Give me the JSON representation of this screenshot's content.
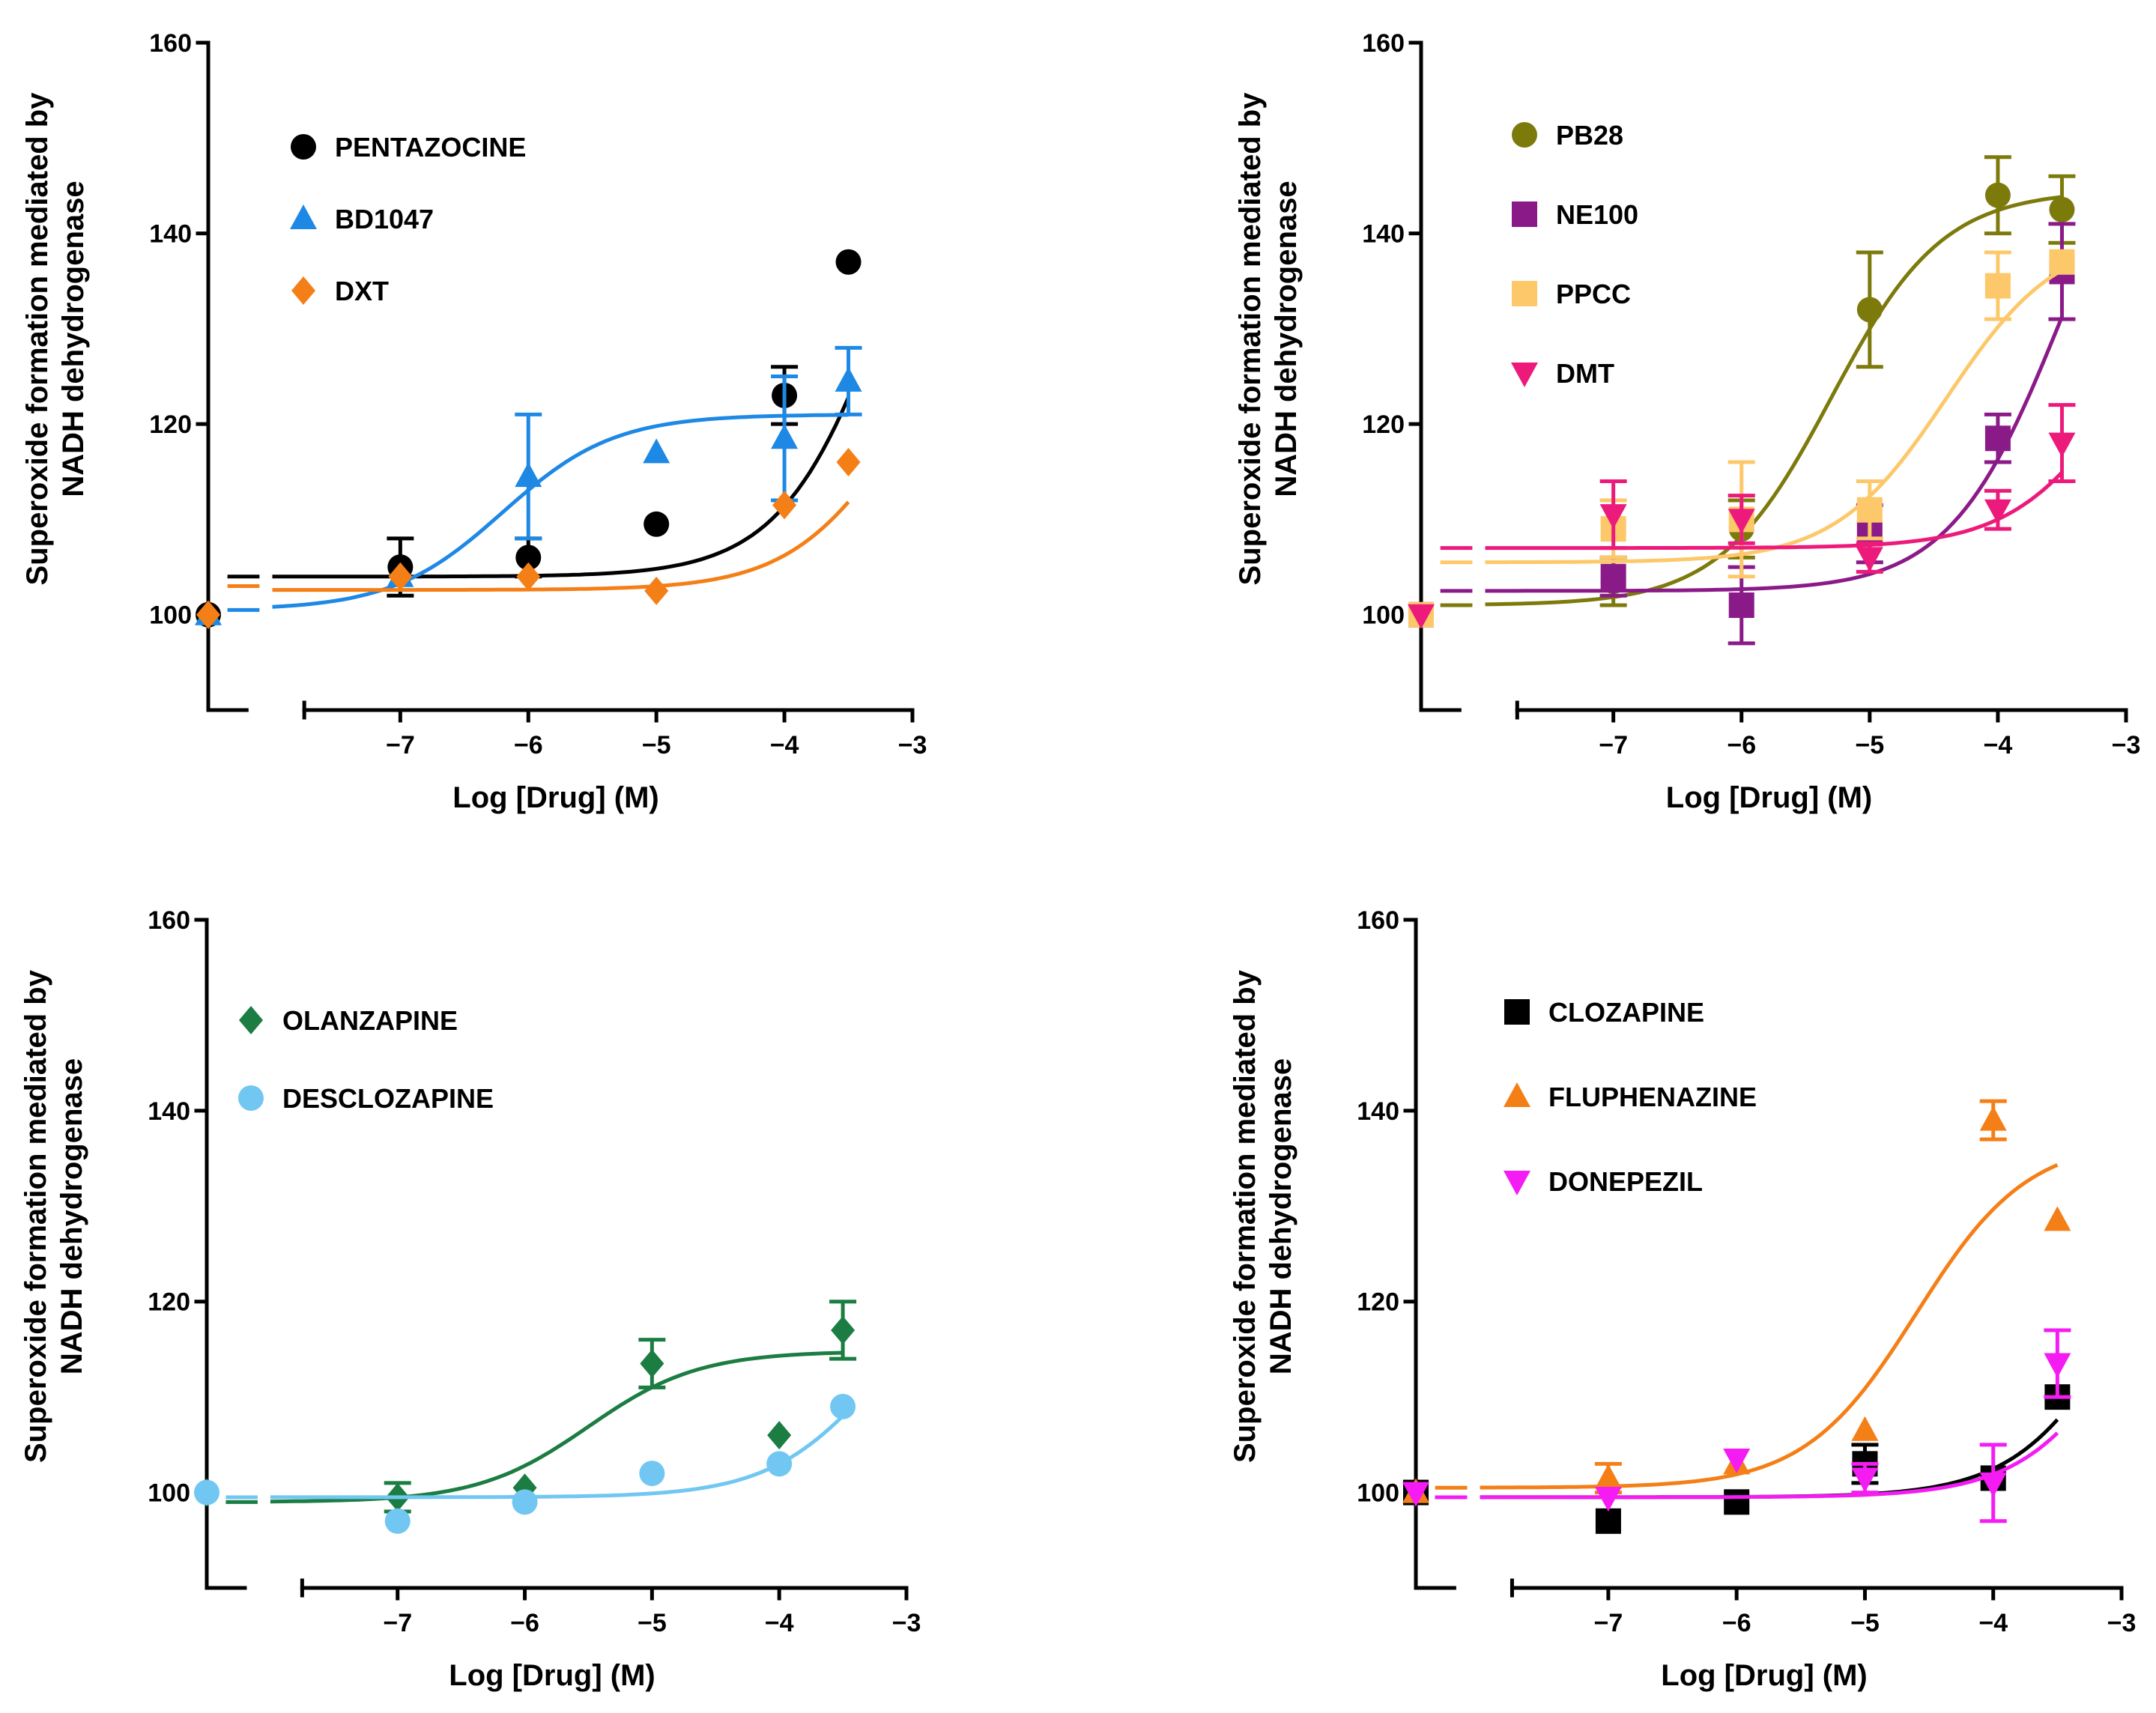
{
  "chart_data": [
    {
      "type": "scatter",
      "panel": "top-left",
      "xlabel": "Log [Drug] (M)",
      "ylabel": [
        "Superoxide  formation mediated by",
        "NADH dehydrogenase"
      ],
      "xlim": [
        -8.5,
        -3
      ],
      "ylim": [
        90,
        160
      ],
      "xticks": [
        -7,
        -6,
        -5,
        -4,
        -3
      ],
      "xtick_labels": [
        "−7",
        "−6",
        "−5",
        "−4",
        "−3"
      ],
      "yticks": [
        100,
        120,
        140,
        160
      ],
      "ytick_labels": [
        "100",
        "120",
        "140",
        "160"
      ],
      "legend_position": "top-left",
      "series": [
        {
          "name": "PENTAZOCINE",
          "color": "#000000",
          "marker": "circle",
          "x": [
            -8.5,
            -7,
            -6,
            -5,
            -4,
            -3.5
          ],
          "y": [
            100,
            105,
            106,
            109.5,
            123,
            137
          ],
          "err": [
            0,
            3,
            2,
            0,
            3,
            0
          ],
          "baseline": 104,
          "curve": {
            "bottom": 104,
            "top": 170,
            "ec50_log": -3.1
          }
        },
        {
          "name": "BD1047",
          "color": "#1e88e5",
          "marker": "triangle-up",
          "x": [
            -8.5,
            -7,
            -6,
            -5,
            -4,
            -3.5
          ],
          "y": [
            100,
            104,
            114.5,
            117,
            118.5,
            124.5
          ],
          "err": [
            0,
            0,
            6.5,
            0,
            6.5,
            3.5
          ],
          "baseline": 100.5,
          "curve": {
            "bottom": 100.5,
            "top": 121,
            "ec50_log": -6.2
          }
        },
        {
          "name": "DXT",
          "color": "#f57f17",
          "marker": "diamond",
          "x": [
            -8.5,
            -7,
            -6,
            -5,
            -4,
            -3.5
          ],
          "y": [
            100,
            104,
            104,
            102.5,
            111.5,
            116
          ],
          "err": [
            0,
            0,
            0,
            0,
            0,
            0
          ],
          "baseline": 103,
          "curve": {
            "bottom": 102.6,
            "top": 135,
            "ec50_log": -3.1
          }
        }
      ]
    },
    {
      "type": "scatter",
      "panel": "top-right",
      "xlabel": "Log [Drug] (M)",
      "ylabel": [
        "Superoxide  formation mediated by",
        "NADH dehydrogenase"
      ],
      "xlim": [
        -8.5,
        -3
      ],
      "ylim": [
        90,
        160
      ],
      "xticks": [
        -7,
        -6,
        -5,
        -4,
        -3
      ],
      "xtick_labels": [
        "−7",
        "−6",
        "−5",
        "−4",
        "−3"
      ],
      "yticks": [
        100,
        120,
        140,
        160
      ],
      "ytick_labels": [
        "100",
        "120",
        "140",
        "160"
      ],
      "legend_position": "top-left",
      "series": [
        {
          "name": "PB28",
          "color": "#7d7a0c",
          "marker": "circle",
          "x": [
            -8.5,
            -7,
            -6,
            -5,
            -4,
            -3.5
          ],
          "y": [
            100,
            103.5,
            109,
            132,
            144,
            142.5
          ],
          "err": [
            0,
            2.5,
            3,
            6,
            4,
            3.5
          ],
          "baseline": 101,
          "curve": {
            "bottom": 101,
            "top": 144.5,
            "ec50_log": -5.3
          }
        },
        {
          "name": "NE100",
          "color": "#8b1a89",
          "marker": "square",
          "x": [
            -8.5,
            -7,
            -6,
            -5,
            -4,
            -3.5
          ],
          "y": [
            100,
            104,
            101,
            108.5,
            118.5,
            136
          ],
          "err": [
            0,
            2,
            4,
            3,
            2.5,
            5
          ],
          "baseline": 102.5,
          "curve": {
            "bottom": 102.5,
            "top": 160,
            "ec50_log": -3.5
          }
        },
        {
          "name": "PPCC",
          "color": "#fdc86a",
          "marker": "square",
          "x": [
            -8.5,
            -7,
            -6,
            -5,
            -4,
            -3.5
          ],
          "y": [
            100,
            109,
            110,
            111,
            134.5,
            137
          ],
          "err": [
            0,
            3,
            6,
            3,
            3.5,
            0
          ],
          "baseline": 105.5,
          "curve": {
            "bottom": 105.5,
            "top": 140,
            "ec50_log": -4.4
          }
        },
        {
          "name": "DMT",
          "color": "#ec1a7a",
          "marker": "triangle-down",
          "x": [
            -8.5,
            -7,
            -6,
            -5,
            -4,
            -3.5
          ],
          "y": [
            100,
            110.5,
            110,
            106,
            111,
            118
          ],
          "err": [
            0,
            3.5,
            2.5,
            1.5,
            2,
            4
          ],
          "baseline": 107,
          "curve": {
            "bottom": 107,
            "top": 140,
            "ec50_log": -3.0
          }
        }
      ]
    },
    {
      "type": "scatter",
      "panel": "bottom-left",
      "xlabel": "Log [Drug] (M)",
      "ylabel": [
        "Superoxide  formation mediated by",
        "NADH dehydrogenase"
      ],
      "xlim": [
        -8.5,
        -3
      ],
      "ylim": [
        90,
        160
      ],
      "xticks": [
        -7,
        -6,
        -5,
        -4,
        -3
      ],
      "xtick_labels": [
        "−7",
        "−6",
        "−5",
        "−4",
        "−3"
      ],
      "yticks": [
        100,
        120,
        140,
        160
      ],
      "ytick_labels": [
        "100",
        "120",
        "140",
        "160"
      ],
      "legend_position": "top-left",
      "series": [
        {
          "name": "OLANZAPINE",
          "color": "#1b7d42",
          "marker": "diamond",
          "x": [
            -8.5,
            -7,
            -6,
            -5,
            -4,
            -3.5
          ],
          "y": [
            100,
            99.5,
            100.5,
            113.5,
            106,
            117
          ],
          "err": [
            0,
            1.5,
            0,
            2.5,
            0,
            3
          ],
          "baseline": 99,
          "curve": {
            "bottom": 99,
            "top": 114.8,
            "ec50_log": -5.5
          }
        },
        {
          "name": "DESCLOZAPINE",
          "color": "#71c7f2",
          "marker": "circle",
          "x": [
            -8.5,
            -7,
            -6,
            -5,
            -4,
            -3.5
          ],
          "y": [
            100,
            97,
            99,
            102,
            103,
            109
          ],
          "err": [
            0,
            0,
            0,
            0,
            0,
            0
          ],
          "baseline": 99.5,
          "curve": {
            "bottom": 99.5,
            "top": 125,
            "ec50_log": -3.2
          }
        }
      ]
    },
    {
      "type": "scatter",
      "panel": "bottom-right",
      "xlabel": "Log [Drug] (M)",
      "ylabel": [
        "Superoxide  formation mediated by",
        "NADH dehydrogenase"
      ],
      "xlim": [
        -8.5,
        -3
      ],
      "ylim": [
        90,
        160
      ],
      "xticks": [
        -7,
        -6,
        -5,
        -4,
        -3
      ],
      "xtick_labels": [
        "−7",
        "−6",
        "−5",
        "−4",
        "−3"
      ],
      "yticks": [
        100,
        120,
        140,
        160
      ],
      "ytick_labels": [
        "100",
        "120",
        "140",
        "160"
      ],
      "legend_position": "top-left",
      "series": [
        {
          "name": "CLOZAPINE",
          "color": "#000000",
          "marker": "square",
          "x": [
            -8.5,
            -7,
            -6,
            -5,
            -4,
            -3.5
          ],
          "y": [
            100,
            97,
            99,
            103,
            101.5,
            110
          ],
          "err": [
            0,
            0,
            0,
            2,
            0,
            0
          ],
          "baseline": 99.5,
          "curve": {
            "bottom": 99.5,
            "top": 140,
            "ec50_log": -2.9
          }
        },
        {
          "name": "FLUPHENAZINE",
          "color": "#f57f17",
          "marker": "triangle-up",
          "x": [
            -8.5,
            -7,
            -6,
            -5,
            -4,
            -3.5
          ],
          "y": [
            100,
            101.5,
            103,
            106.5,
            139,
            128.5
          ],
          "err": [
            0,
            1.5,
            0,
            0,
            2,
            0
          ],
          "baseline": 100.5,
          "curve": {
            "bottom": 100.5,
            "top": 137,
            "ec50_log": -4.6
          }
        },
        {
          "name": "DONEPEZIL",
          "color": "#f41cf3",
          "marker": "triangle-down",
          "x": [
            -8.5,
            -7,
            -6,
            -5,
            -4,
            -3.5
          ],
          "y": [
            100,
            99.5,
            103.5,
            101.5,
            101,
            113.5
          ],
          "err": [
            0,
            0,
            0,
            1.5,
            4,
            3.5
          ],
          "baseline": 99.5,
          "curve": {
            "bottom": 99.5,
            "top": 140,
            "ec50_log": -2.8
          }
        }
      ]
    }
  ]
}
